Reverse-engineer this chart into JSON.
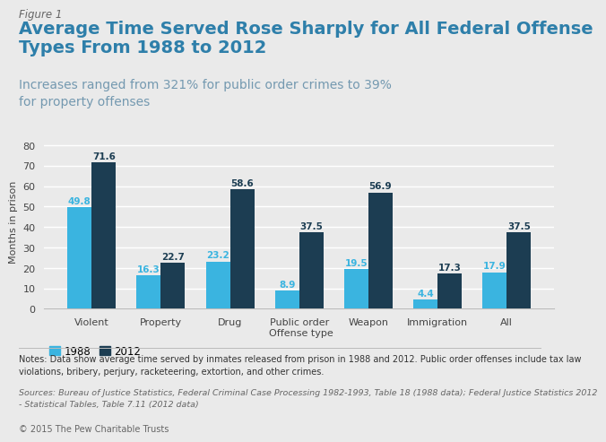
{
  "figure_label": "Figure 1",
  "title": "Average Time Served Rose Sharply for All Federal Offense\nTypes From 1988 to 2012",
  "subtitle": "Increases ranged from 321% for public order crimes to 39%\nfor property offenses",
  "categories": [
    "Violent",
    "Property",
    "Drug",
    "Public order",
    "Weapon",
    "Immigration",
    "All"
  ],
  "values_1988": [
    49.8,
    16.3,
    23.2,
    8.9,
    19.5,
    4.4,
    17.9
  ],
  "values_2012": [
    71.6,
    22.7,
    58.6,
    37.5,
    56.9,
    17.3,
    37.5
  ],
  "color_1988": "#3ab4e0",
  "color_2012": "#1c3d52",
  "ylabel": "Months in prison",
  "xlabel": "Offense type",
  "ylim": [
    0,
    85
  ],
  "yticks": [
    0,
    10,
    20,
    30,
    40,
    50,
    60,
    70,
    80
  ],
  "legend_labels": [
    "1988",
    "2012"
  ],
  "background_color": "#eaeaea",
  "plot_bg_color": "#eaeaea",
  "bar_width": 0.35,
  "notes_text": "Notes: Data show average time served by inmates released from prison in 1988 and 2012. Public order offenses include tax law\nviolations, bribery, perjury, racketeering, extortion, and other crimes.",
  "sources_text": "Sources: Bureau of Justice Statistics, Federal Criminal Case Processing 1982-1993, Table 18 (1988 data); Federal Justice Statistics 2012\n- Statistical Tables, Table 7.11 (2012 data)",
  "copyright_text": "© 2015 The Pew Charitable Trusts",
  "title_color": "#2e7faa",
  "subtitle_color": "#7499b0",
  "figure_label_color": "#666666",
  "value_label_fontsize": 7.5,
  "title_fontsize": 14,
  "subtitle_fontsize": 10,
  "figure_label_fontsize": 8.5,
  "axis_fontsize": 8,
  "notes_fontsize": 7,
  "sources_fontsize": 6.8,
  "copyright_fontsize": 7,
  "value_label_color_1988": "#3ab4e0",
  "value_label_color_2012": "#1c3d52",
  "grid_color": "#ffffff",
  "spine_color": "#bbbbbb",
  "tick_label_color": "#444444"
}
